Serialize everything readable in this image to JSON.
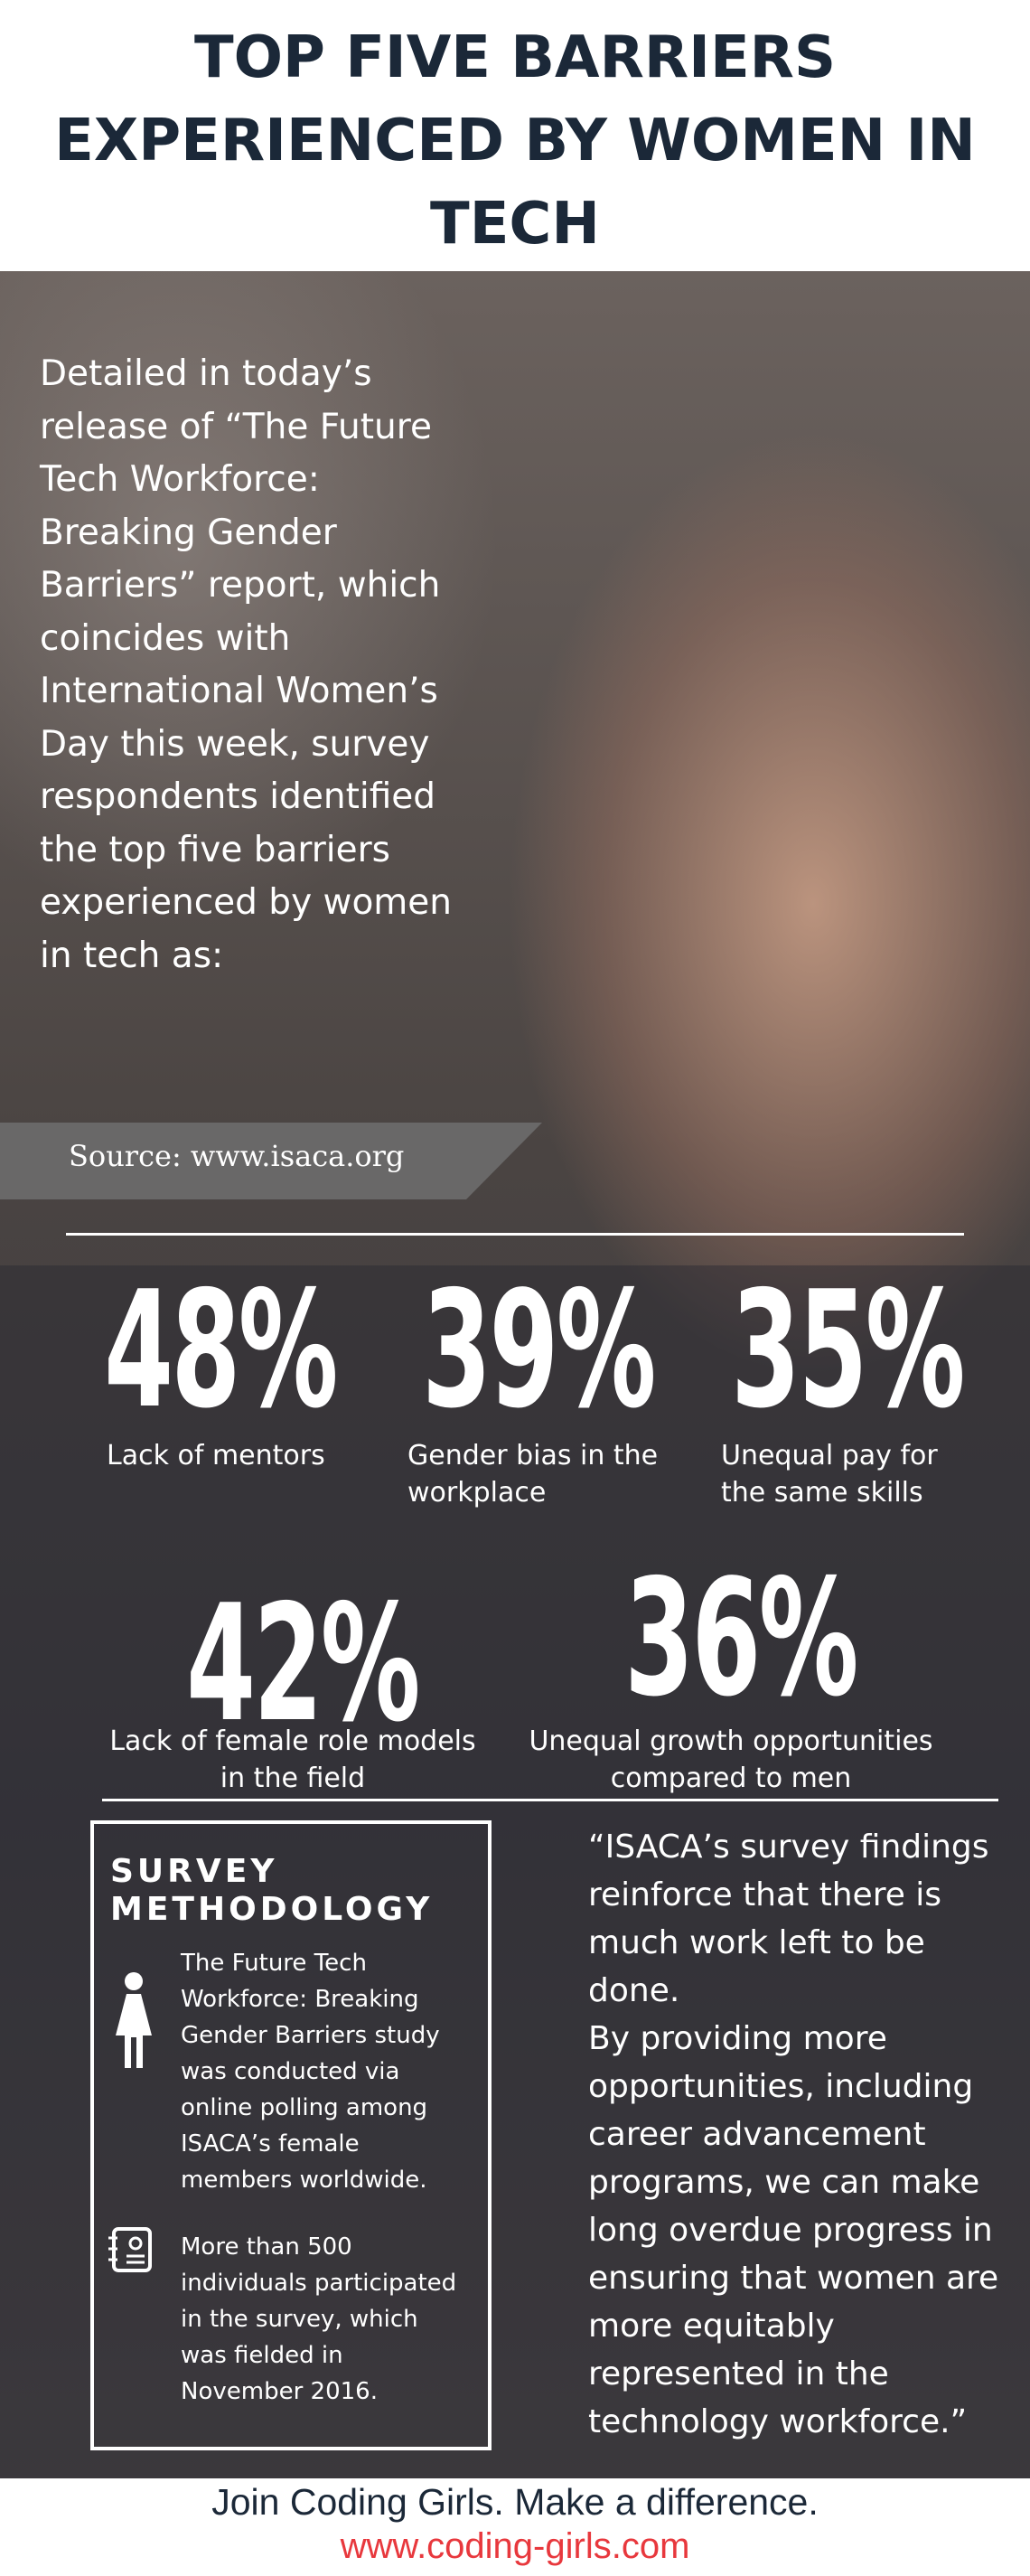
{
  "header": {
    "title": "TOP FIVE BARRIERS EXPERIENCED BY WOMEN IN TECH"
  },
  "intro": "Detailed in today’s release of “The Future Tech Workforce: Breaking Gender Barriers” report, which coincides with International Women’s Day this week, survey respondents identified the top five barriers experienced by women in tech as:",
  "source": "Source: www.isaca.org",
  "stats": [
    {
      "value": "48%",
      "label": "Lack of mentors"
    },
    {
      "value": "39%",
      "label": "Gender bias in the workplace"
    },
    {
      "value": "35%",
      "label": "Unequal pay for the same skills"
    },
    {
      "value": "42%",
      "label": "Lack of female role models in the field"
    },
    {
      "value": "36%",
      "label": "Unequal growth opportunities compared to men"
    }
  ],
  "methodology": {
    "title": "SURVEY METHODOLOGY",
    "items": [
      "The Future Tech Workforce: Breaking Gender Barriers study was conducted via online polling among ISACA’s female members worldwide.",
      "More than 500 individuals participated in the survey, which was fielded in November 2016."
    ]
  },
  "quote": [
    "“ISACA’s survey findings reinforce that there is much work left to be done.",
    "By providing more opportunities, including career advancement programs, we can make long overdue progress in ensuring that women are more equitably represented in the technology workforce.”"
  ],
  "footer": {
    "cta": "Join Coding Girls. Make a difference.",
    "url": "www.coding-girls.com"
  }
}
